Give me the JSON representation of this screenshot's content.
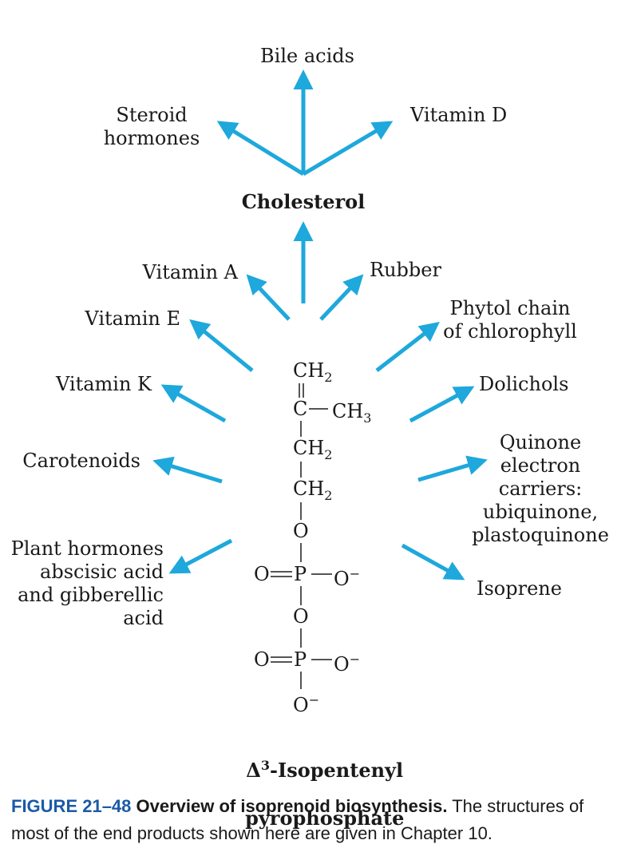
{
  "colors": {
    "arrow": "#1ea8dc",
    "figure_number": "#1b5aa8"
  },
  "labels": {
    "bile_acids": "Bile acids",
    "steroid_hormones": "Steroid\nhormones",
    "vitamin_d": "Vitamin D",
    "cholesterol": "Cholesterol",
    "vitamin_a": "Vitamin A",
    "rubber": "Rubber",
    "vitamin_e": "Vitamin E",
    "phytol": "Phytol chain\nof chlorophyll",
    "vitamin_k": "Vitamin K",
    "dolichols": "Dolichols",
    "carotenoids": "Carotenoids",
    "quinone": "Quinone\nelectron\ncarriers:\nubiquinone,\nplastoquinone",
    "plant_hormones": "Plant hormones\nabscisic acid\nand gibberellic\nacid",
    "isoprene": "Isoprene"
  },
  "molecule": {
    "ch2_top": "CH",
    "ch2_sub": "2",
    "c": "C",
    "ch3": "CH",
    "ch3_sub": "3",
    "ch2_a": "CH",
    "ch2_a_sub": "2",
    "ch2_b": "CH",
    "ch2_b_sub": "2",
    "o1": "O",
    "o_eq1": "O",
    "p1": "P",
    "o_minus1": "O",
    "minus": "−",
    "o2": "O",
    "o_eq2": "O",
    "p2": "P",
    "o_minus2": "O",
    "o_minus3": "O"
  },
  "molecule_name": {
    "delta": "Δ",
    "superscript": "3",
    "line1": "-Isopentenyl",
    "line2": "pyrophosphate"
  },
  "caption": {
    "number": "FIGURE 21–48",
    "title": "Overview of isoprenoid biosynthesis.",
    "text": "The structures of most of the end products shown here are given in Chapter 10."
  }
}
